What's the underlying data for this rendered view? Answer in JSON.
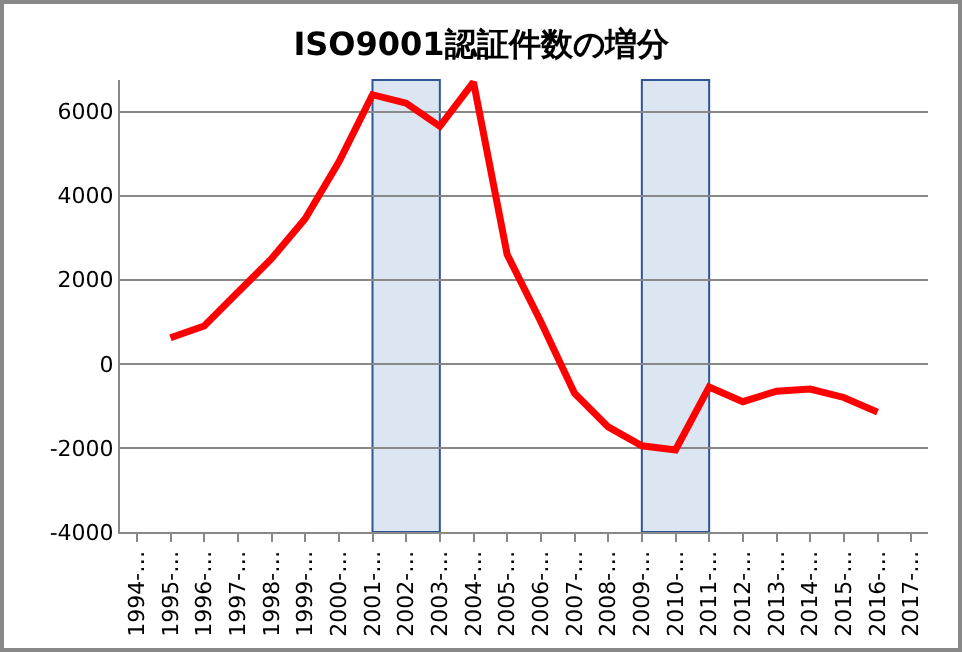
{
  "chart_data": {
    "type": "line",
    "title": "ISO9001認証件数の増分",
    "categories": [
      "1994-…",
      "1995-…",
      "1996-…",
      "1997-…",
      "1998-…",
      "1999-…",
      "2000-…",
      "2001-…",
      "2002-…",
      "2003-…",
      "2004-…",
      "2005-…",
      "2006-…",
      "2007-…",
      "2008-…",
      "2009-…",
      "2010-…",
      "2011-…",
      "2012-…",
      "2013-…",
      "2014-…",
      "2015-…",
      "2016-…",
      "2017-…"
    ],
    "series": [
      {
        "color": "#ff0000",
        "values": [
          null,
          620,
          900,
          1700,
          2500,
          3450,
          4800,
          6400,
          6200,
          5650,
          6700,
          2600,
          1000,
          -700,
          -1500,
          -1950,
          -2050,
          -550,
          -900,
          -650,
          -600,
          -800,
          -1150,
          null
        ]
      }
    ],
    "ylim": [
      -4000,
      6750
    ],
    "yticks": [
      -4000,
      -2000,
      0,
      2000,
      4000,
      6000
    ],
    "bands": [
      {
        "axis": "x",
        "from": "2001-…",
        "to": "2003-…",
        "color": "#dce6f2"
      },
      {
        "axis": "x",
        "from": "2009-…",
        "to": "2011-…",
        "color": "#dce6f2"
      }
    ],
    "grid": "y",
    "marker": "none",
    "line_style": "solid"
  }
}
